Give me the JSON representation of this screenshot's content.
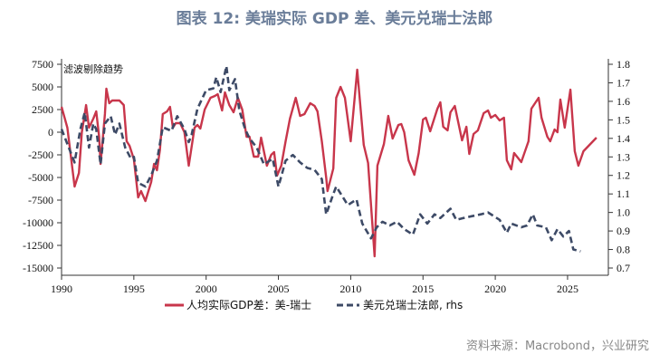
{
  "title": "图表 12: 美瑞实际 GDP 差、美元兑瑞士法郎",
  "source": "资料来源：Macrobond，兴业研究",
  "chart_data": {
    "type": "line",
    "note": "滤波剔除趋势",
    "x_ticks": [
      1990,
      1995,
      2000,
      2005,
      2010,
      2015,
      2020,
      2025
    ],
    "xlim": [
      1990,
      2028
    ],
    "y_left": {
      "ticks": [
        7500,
        5000,
        2500,
        0,
        -2500,
        -5000,
        -7500,
        -10000,
        -12500,
        -15000
      ],
      "lim": [
        -15000,
        7500
      ]
    },
    "y_right": {
      "ticks": [
        1.8,
        1.7,
        1.6,
        1.5,
        1.4,
        1.3,
        1.2,
        1.1,
        1.0,
        0.9,
        0.8,
        0.7
      ],
      "lim": [
        0.7,
        1.8
      ]
    },
    "series": [
      {
        "name": "人均实际GDP差：美-瑞士",
        "axis": "left",
        "color": "#c8364b",
        "style": "solid",
        "points": [
          [
            1990,
            2800
          ],
          [
            1990.4,
            500
          ],
          [
            1990.9,
            -6000
          ],
          [
            1991.2,
            -4500
          ],
          [
            1991.4,
            0
          ],
          [
            1991.6,
            2000
          ],
          [
            1991.7,
            3000
          ],
          [
            1991.9,
            500
          ],
          [
            1992.2,
            1500
          ],
          [
            1992.4,
            2300
          ],
          [
            1992.6,
            -500
          ],
          [
            1992.7,
            -3500
          ],
          [
            1993.0,
            2000
          ],
          [
            1993.1,
            4800
          ],
          [
            1993.3,
            3200
          ],
          [
            1993.5,
            3500
          ],
          [
            1994,
            3500
          ],
          [
            1994.3,
            3000
          ],
          [
            1994.5,
            -1000
          ],
          [
            1994.7,
            -1500
          ],
          [
            1995,
            -3000
          ],
          [
            1995.3,
            -7200
          ],
          [
            1995.5,
            -6500
          ],
          [
            1995.8,
            -7600
          ],
          [
            1996.2,
            -5500
          ],
          [
            1996.4,
            -3500
          ],
          [
            1996.6,
            -4200
          ],
          [
            1996.8,
            -2000
          ],
          [
            1997,
            2000
          ],
          [
            1997.3,
            2300
          ],
          [
            1997.5,
            2800
          ],
          [
            1997.7,
            500
          ],
          [
            1997.9,
            1000
          ],
          [
            1998.2,
            1000
          ],
          [
            1998.5,
            0
          ],
          [
            1998.8,
            -3700
          ],
          [
            1999.2,
            500
          ],
          [
            1999.4,
            800
          ],
          [
            1999.6,
            400
          ],
          [
            1999.9,
            2500
          ],
          [
            2000.3,
            3800
          ],
          [
            2000.6,
            4000
          ],
          [
            2000.8,
            4200
          ],
          [
            2001.1,
            2400
          ],
          [
            2001.3,
            4400
          ],
          [
            2001.6,
            3000
          ],
          [
            2001.9,
            2200
          ],
          [
            2002.2,
            3800
          ],
          [
            2002.5,
            2500
          ],
          [
            2002.8,
            -500
          ],
          [
            2003,
            -500
          ],
          [
            2003.3,
            -2700
          ],
          [
            2003.6,
            -2700
          ],
          [
            2003.8,
            -600
          ],
          [
            2004.2,
            -3700
          ],
          [
            2004.5,
            -2500
          ],
          [
            2004.7,
            -2200
          ],
          [
            2004.9,
            -4800
          ],
          [
            2005.2,
            -3700
          ],
          [
            2005.5,
            -1000
          ],
          [
            2005.8,
            1500
          ],
          [
            2006.2,
            3800
          ],
          [
            2006.5,
            1800
          ],
          [
            2006.8,
            2000
          ],
          [
            2007.2,
            3200
          ],
          [
            2007.5,
            2900
          ],
          [
            2007.7,
            2300
          ],
          [
            2008,
            -1000
          ],
          [
            2008.3,
            -5000
          ],
          [
            2008.4,
            -6500
          ],
          [
            2008.8,
            -4000
          ],
          [
            2009,
            3800
          ],
          [
            2009.3,
            5000
          ],
          [
            2009.6,
            3800
          ],
          [
            2010,
            -1000
          ],
          [
            2010.45,
            6900
          ],
          [
            2010.9,
            -1400
          ],
          [
            2011.2,
            -3400
          ],
          [
            2011.65,
            -13700
          ],
          [
            2011.85,
            -3700
          ],
          [
            2012.3,
            -1300
          ],
          [
            2012.6,
            1800
          ],
          [
            2012.9,
            -700
          ],
          [
            2013.3,
            800
          ],
          [
            2013.5,
            900
          ],
          [
            2013.7,
            0
          ],
          [
            2014,
            -3100
          ],
          [
            2014.4,
            -4700
          ],
          [
            2014.7,
            -2300
          ],
          [
            2015,
            1400
          ],
          [
            2015.2,
            1600
          ],
          [
            2015.5,
            100
          ],
          [
            2016,
            2600
          ],
          [
            2016.2,
            3300
          ],
          [
            2016.4,
            600
          ],
          [
            2016.7,
            200
          ],
          [
            2016.9,
            2200
          ],
          [
            2017.2,
            2900
          ],
          [
            2017.7,
            -900
          ],
          [
            2018,
            600
          ],
          [
            2018.2,
            -2400
          ],
          [
            2018.5,
            -200
          ],
          [
            2018.8,
            200
          ],
          [
            2019.2,
            2100
          ],
          [
            2019.5,
            2400
          ],
          [
            2019.7,
            1600
          ],
          [
            2020,
            1900
          ],
          [
            2020.3,
            1300
          ],
          [
            2020.6,
            1600
          ],
          [
            2020.8,
            -3100
          ],
          [
            2021.1,
            -4100
          ],
          [
            2021.3,
            -2300
          ],
          [
            2021.8,
            -3300
          ],
          [
            2022.3,
            -1000
          ],
          [
            2022.5,
            2600
          ],
          [
            2023,
            3800
          ],
          [
            2023.2,
            1600
          ],
          [
            2023.6,
            -500
          ],
          [
            2023.8,
            -1000
          ],
          [
            2024.1,
            300
          ],
          [
            2024.3,
            0
          ],
          [
            2024.5,
            3600
          ],
          [
            2024.8,
            500
          ],
          [
            2025.2,
            4700
          ],
          [
            2025.5,
            -2100
          ],
          [
            2025.75,
            -3700
          ],
          [
            2026.1,
            -2100
          ],
          [
            2027,
            -600
          ]
        ]
      },
      {
        "name": "美元兑瑞士法郎, rhs",
        "axis": "right",
        "color": "#3d4a66",
        "style": "dashed",
        "points": [
          [
            1990,
            1.45
          ],
          [
            1990.5,
            1.35
          ],
          [
            1990.9,
            1.27
          ],
          [
            1991.3,
            1.45
          ],
          [
            1991.6,
            1.54
          ],
          [
            1991.9,
            1.35
          ],
          [
            1992.2,
            1.48
          ],
          [
            1992.4,
            1.45
          ],
          [
            1992.7,
            1.26
          ],
          [
            1993,
            1.48
          ],
          [
            1993.4,
            1.52
          ],
          [
            1993.7,
            1.42
          ],
          [
            1994,
            1.48
          ],
          [
            1994.4,
            1.35
          ],
          [
            1994.8,
            1.29
          ],
          [
            1995,
            1.3
          ],
          [
            1995.3,
            1.16
          ],
          [
            1995.8,
            1.14
          ],
          [
            1996.2,
            1.2
          ],
          [
            1996.6,
            1.28
          ],
          [
            1997,
            1.46
          ],
          [
            1997.6,
            1.44
          ],
          [
            1998,
            1.52
          ],
          [
            1998.5,
            1.45
          ],
          [
            1998.8,
            1.38
          ],
          [
            1999,
            1.42
          ],
          [
            1999.4,
            1.56
          ],
          [
            2000,
            1.66
          ],
          [
            2000.5,
            1.67
          ],
          [
            2000.7,
            1.73
          ],
          [
            2001,
            1.65
          ],
          [
            2001.4,
            1.79
          ],
          [
            2001.6,
            1.66
          ],
          [
            2002,
            1.72
          ],
          [
            2002.3,
            1.55
          ],
          [
            2002.7,
            1.45
          ],
          [
            2003,
            1.4
          ],
          [
            2003.5,
            1.35
          ],
          [
            2004,
            1.26
          ],
          [
            2004.6,
            1.29
          ],
          [
            2005,
            1.14
          ],
          [
            2005.5,
            1.28
          ],
          [
            2006,
            1.31
          ],
          [
            2006.5,
            1.27
          ],
          [
            2007,
            1.24
          ],
          [
            2007.5,
            1.23
          ],
          [
            2008,
            1.18
          ],
          [
            2008.3,
            0.99
          ],
          [
            2008.8,
            1.1
          ],
          [
            2009,
            1.14
          ],
          [
            2009.8,
            1.04
          ],
          [
            2010.4,
            1.07
          ],
          [
            2010.8,
            0.94
          ],
          [
            2011.4,
            0.86
          ],
          [
            2011.8,
            0.92
          ],
          [
            2012.2,
            0.95
          ],
          [
            2012.7,
            0.93
          ],
          [
            2013.2,
            0.95
          ],
          [
            2013.7,
            0.91
          ],
          [
            2014.3,
            0.88
          ],
          [
            2014.8,
            0.99
          ],
          [
            2015.3,
            0.94
          ],
          [
            2015.8,
            0.99
          ],
          [
            2016.2,
            0.97
          ],
          [
            2016.9,
            1.02
          ],
          [
            2017.3,
            0.96
          ],
          [
            2017.8,
            0.97
          ],
          [
            2018.4,
            0.98
          ],
          [
            2019,
            0.99
          ],
          [
            2019.5,
            1.0
          ],
          [
            2020.3,
            0.96
          ],
          [
            2020.8,
            0.89
          ],
          [
            2021.1,
            0.94
          ],
          [
            2021.8,
            0.92
          ],
          [
            2022.2,
            0.93
          ],
          [
            2022.6,
            0.99
          ],
          [
            2022.9,
            0.93
          ],
          [
            2023.5,
            0.92
          ],
          [
            2023.9,
            0.85
          ],
          [
            2024.3,
            0.91
          ],
          [
            2024.7,
            0.87
          ],
          [
            2025.1,
            0.9
          ],
          [
            2025.4,
            0.8
          ],
          [
            2025.9,
            0.79
          ]
        ]
      }
    ],
    "legend": "bottom-center"
  }
}
